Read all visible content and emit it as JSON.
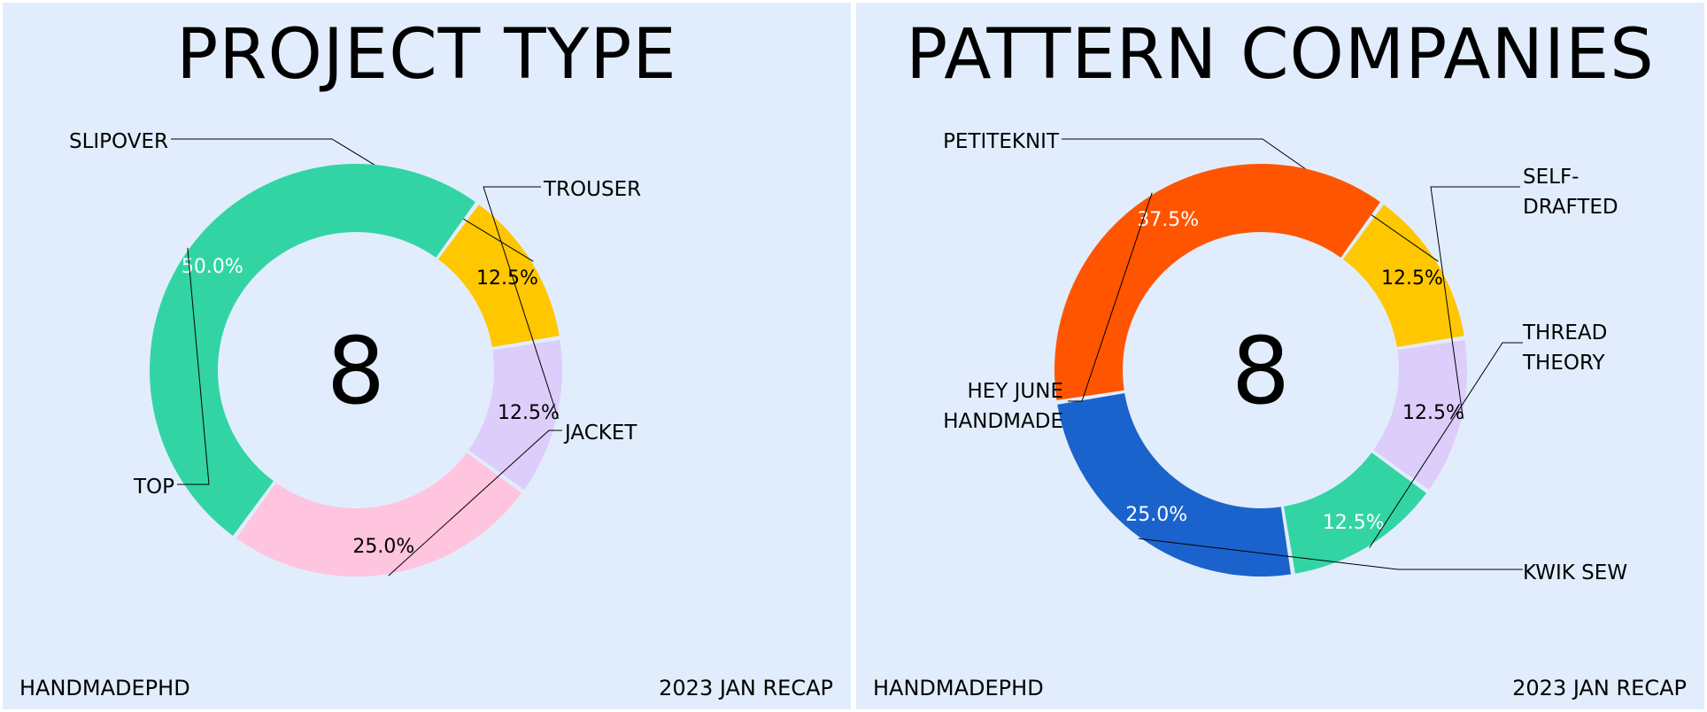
{
  "footer": {
    "author": "HANDMADEPHD",
    "period": "2023 JAN RECAP"
  },
  "chart_data": [
    {
      "type": "pie",
      "variant": "donut",
      "title": "PROJECT TYPE",
      "center_text": "8",
      "slices": [
        {
          "label": "SLIPOVER",
          "value": 12.5,
          "pct_label": "12.5%",
          "color": "#ffc700",
          "pct_color": "#000000"
        },
        {
          "label": "TROUSER",
          "value": 12.5,
          "pct_label": "12.5%",
          "color": "#dccdfb",
          "pct_color": "#000000"
        },
        {
          "label": "JACKET",
          "value": 25.0,
          "pct_label": "25.0%",
          "color": "#ffc4de",
          "pct_color": "#000000"
        },
        {
          "label": "TOP",
          "value": 50.0,
          "pct_label": "50.0%",
          "color": "#33d4a4",
          "pct_color": "#ffffff"
        }
      ]
    },
    {
      "type": "pie",
      "variant": "donut",
      "title": "PATTERN COMPANIES",
      "center_text": "8",
      "slices": [
        {
          "label": "PETITEKNIT",
          "value": 12.5,
          "pct_label": "12.5%",
          "color": "#ffc700",
          "pct_color": "#000000"
        },
        {
          "label": "SELF-\nDRAFTED",
          "value": 12.5,
          "pct_label": "12.5%",
          "color": "#dccdfb",
          "pct_color": "#000000"
        },
        {
          "label": "THREAD\nTHEORY",
          "value": 12.5,
          "pct_label": "12.5%",
          "color": "#33d4a4",
          "pct_color": "#ffffff"
        },
        {
          "label": "KWIK SEW",
          "value": 25.0,
          "pct_label": "25.0%",
          "color": "#1b63cc",
          "pct_color": "#ffffff"
        },
        {
          "label": "HEY JUNE\nHANDMADE",
          "value": 37.5,
          "pct_label": "37.5%",
          "color": "#ff5500",
          "pct_color": "#ffffff"
        }
      ]
    }
  ]
}
